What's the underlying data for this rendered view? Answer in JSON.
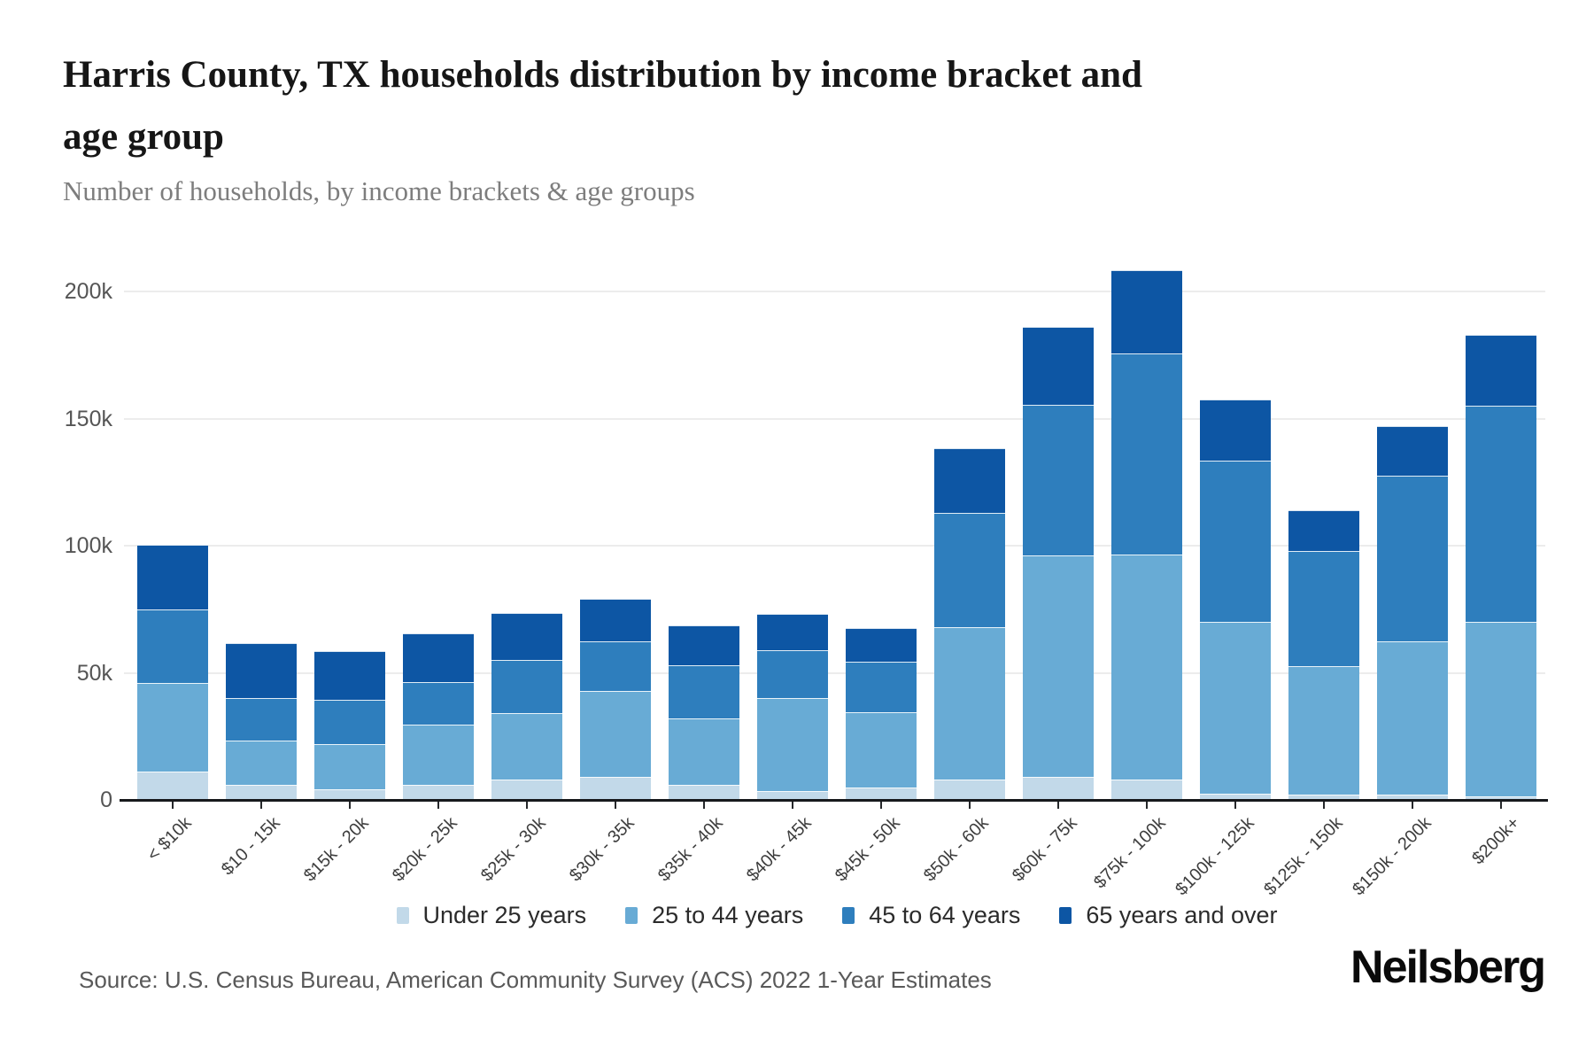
{
  "header": {
    "title_line1": "Harris County, TX households distribution by income bracket and",
    "title_line2": "age group",
    "subtitle": "Number of households, by income brackets & age groups"
  },
  "chart_data": {
    "type": "bar",
    "stacked": true,
    "title": "Harris County, TX households distribution by income bracket and age group",
    "subtitle": "Number of households, by income brackets & age groups",
    "xlabel": "",
    "ylabel": "Number of households",
    "categories": [
      "< $10k",
      "$10 - 15k",
      "$15k - 20k",
      "$20k - 25k",
      "$25k - 30k",
      "$30k - 35k",
      "$35k - 40k",
      "$40k - 45k",
      "$45k - 50k",
      "$50k - 60k",
      "$60k - 75k",
      "$75k - 100k",
      "$100k - 125k",
      "$125k - 150k",
      "$150k - 200k",
      "$200k+"
    ],
    "series": [
      {
        "name": "Under 25 years",
        "color": "#c2d9e9",
        "values": [
          11000,
          6000,
          4000,
          6000,
          8000,
          9000,
          6000,
          3500,
          5000,
          8000,
          9000,
          8000,
          2500,
          2000,
          2000,
          1500
        ]
      },
      {
        "name": "25 to 44 years",
        "color": "#68abd5",
        "values": [
          35000,
          17500,
          18000,
          23500,
          26000,
          34000,
          26000,
          36500,
          29500,
          60000,
          87000,
          88500,
          67500,
          50500,
          60500,
          68500
        ]
      },
      {
        "name": "45 to 64 years",
        "color": "#2e7ebd",
        "values": [
          29000,
          16500,
          17500,
          17000,
          21000,
          19500,
          21000,
          19000,
          20000,
          45000,
          59500,
          79000,
          63500,
          45500,
          65000,
          85000
        ]
      },
      {
        "name": "65 years and over",
        "color": "#0d56a4",
        "values": [
          25500,
          21500,
          19000,
          19000,
          18500,
          16500,
          15500,
          14000,
          13000,
          25500,
          30500,
          33000,
          24000,
          16000,
          19500,
          28000
        ]
      }
    ],
    "y_ticks": [
      "0",
      "50k",
      "100k",
      "150k",
      "200k"
    ],
    "y_tick_values": [
      0,
      50000,
      100000,
      150000,
      200000
    ],
    "ylim": [
      0,
      215000
    ],
    "grid": true,
    "legend_position": "bottom"
  },
  "footer": {
    "source": "Source: U.S. Census Bureau, American Community Survey (ACS) 2022 1-Year Estimates",
    "brand": "Neilsberg"
  }
}
